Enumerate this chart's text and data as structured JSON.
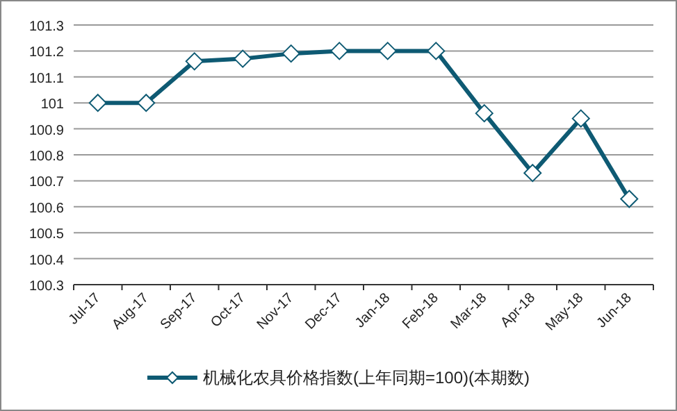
{
  "chart_data": {
    "type": "line",
    "categories": [
      "Jul-17",
      "Aug-17",
      "Sep-17",
      "Oct-17",
      "Nov-17",
      "Dec-17",
      "Jan-18",
      "Feb-18",
      "Mar-18",
      "Apr-18",
      "May-18",
      "Jun-18"
    ],
    "series": [
      {
        "name": "机械化农具价格指数(上年同期=100)(本期数)",
        "color": "#0e5a73",
        "values": [
          101,
          101,
          101.16,
          101.17,
          101.19,
          101.2,
          101.2,
          101.2,
          100.96,
          100.73,
          100.94,
          100.63
        ]
      }
    ],
    "ylim": [
      100.3,
      101.3
    ],
    "yticks": [
      100.3,
      100.4,
      100.5,
      100.6,
      100.7,
      100.8,
      100.9,
      101,
      101.1,
      101.2,
      101.3
    ],
    "grid": "y",
    "legend": "bottom",
    "marker": "diamond",
    "line_style": "solid"
  }
}
